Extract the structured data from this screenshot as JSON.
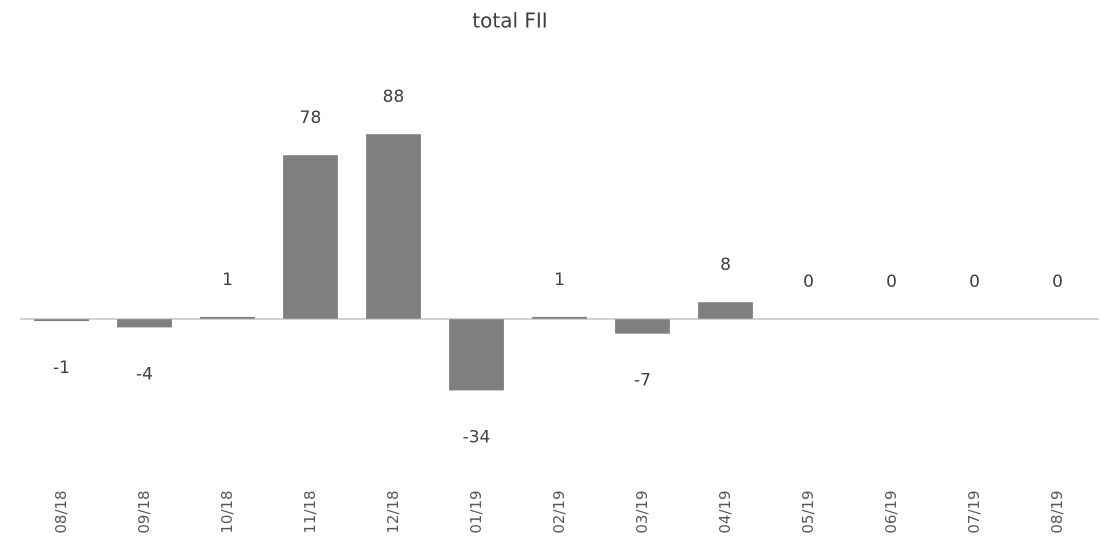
{
  "chart_data": {
    "type": "bar",
    "title": "total FII",
    "categories": [
      "08/18",
      "09/18",
      "10/18",
      "11/18",
      "12/18",
      "01/19",
      "02/19",
      "03/19",
      "04/19",
      "05/19",
      "06/19",
      "07/19",
      "08/19"
    ],
    "values": [
      -1,
      -4,
      1,
      78,
      88,
      -34,
      1,
      -7,
      8,
      0,
      0,
      0,
      0
    ],
    "color": "#7f7f7f",
    "ylim": [
      -40,
      100
    ]
  }
}
